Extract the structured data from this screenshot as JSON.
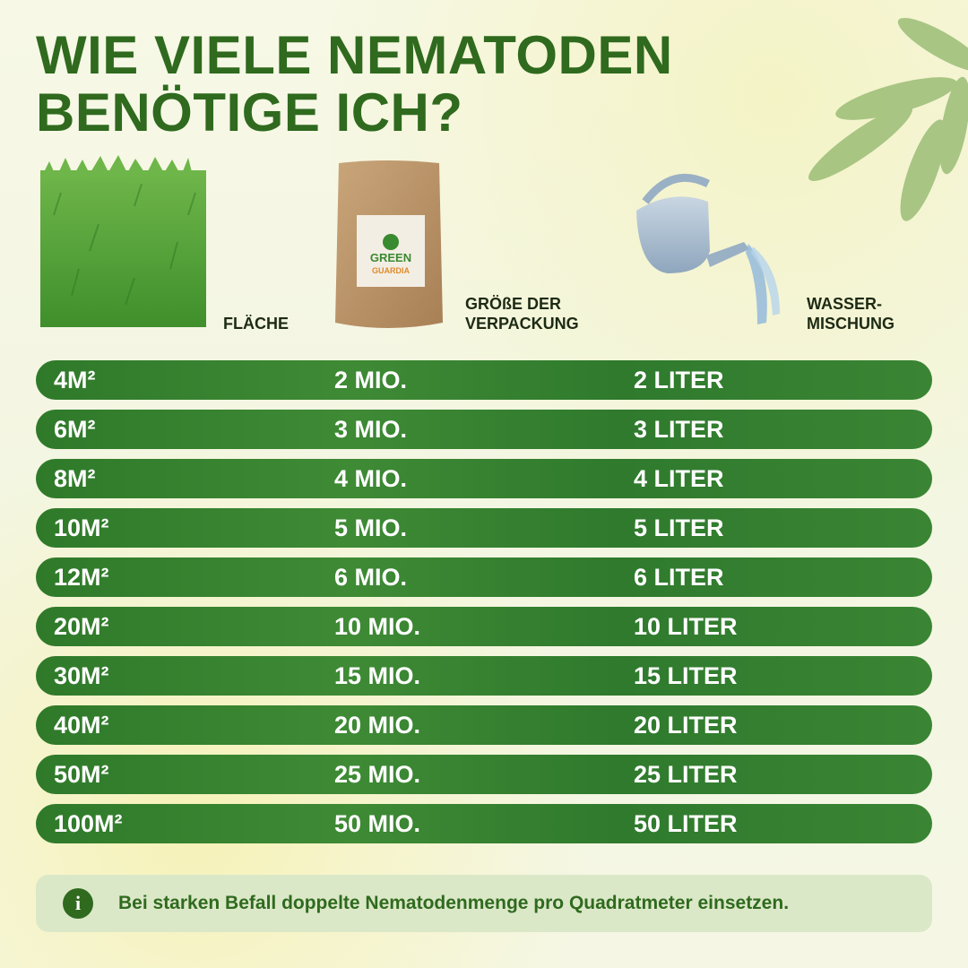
{
  "title": {
    "lines": [
      "WIE VIELE NEMATODEN",
      "BENÖTIGE ICH?"
    ]
  },
  "headers": {
    "area": [
      "FLÄCHE"
    ],
    "package": [
      "GRÖßE DER",
      "VERPACKUNG"
    ],
    "water": [
      "WASSER-",
      "MISCHUNG"
    ]
  },
  "package_label": [
    "GREEN",
    "GUARDIA"
  ],
  "table": {
    "rows": [
      [
        "4M²",
        "2 MIO.",
        "2 LITER"
      ],
      [
        "6M²",
        "3 MIO.",
        "3 LITER"
      ],
      [
        "8M²",
        "4 MIO.",
        "4 LITER"
      ],
      [
        "10M²",
        "5 MIO.",
        "5 LITER"
      ],
      [
        "12M²",
        "6 MIO.",
        "6 LITER"
      ],
      [
        "20M²",
        "10 MIO.",
        "10 LITER"
      ],
      [
        "30M²",
        "15 MIO.",
        "15 LITER"
      ],
      [
        "40M²",
        "20 MIO.",
        "20 LITER"
      ],
      [
        "50M²",
        "25 MIO.",
        "25 LITER"
      ],
      [
        "100M²",
        "50 MIO.",
        "50 LITER"
      ]
    ]
  },
  "note": {
    "icon": "i",
    "text": "Bei starken Befall doppelte Nematodenmenge pro Quadratmeter einsetzen."
  }
}
